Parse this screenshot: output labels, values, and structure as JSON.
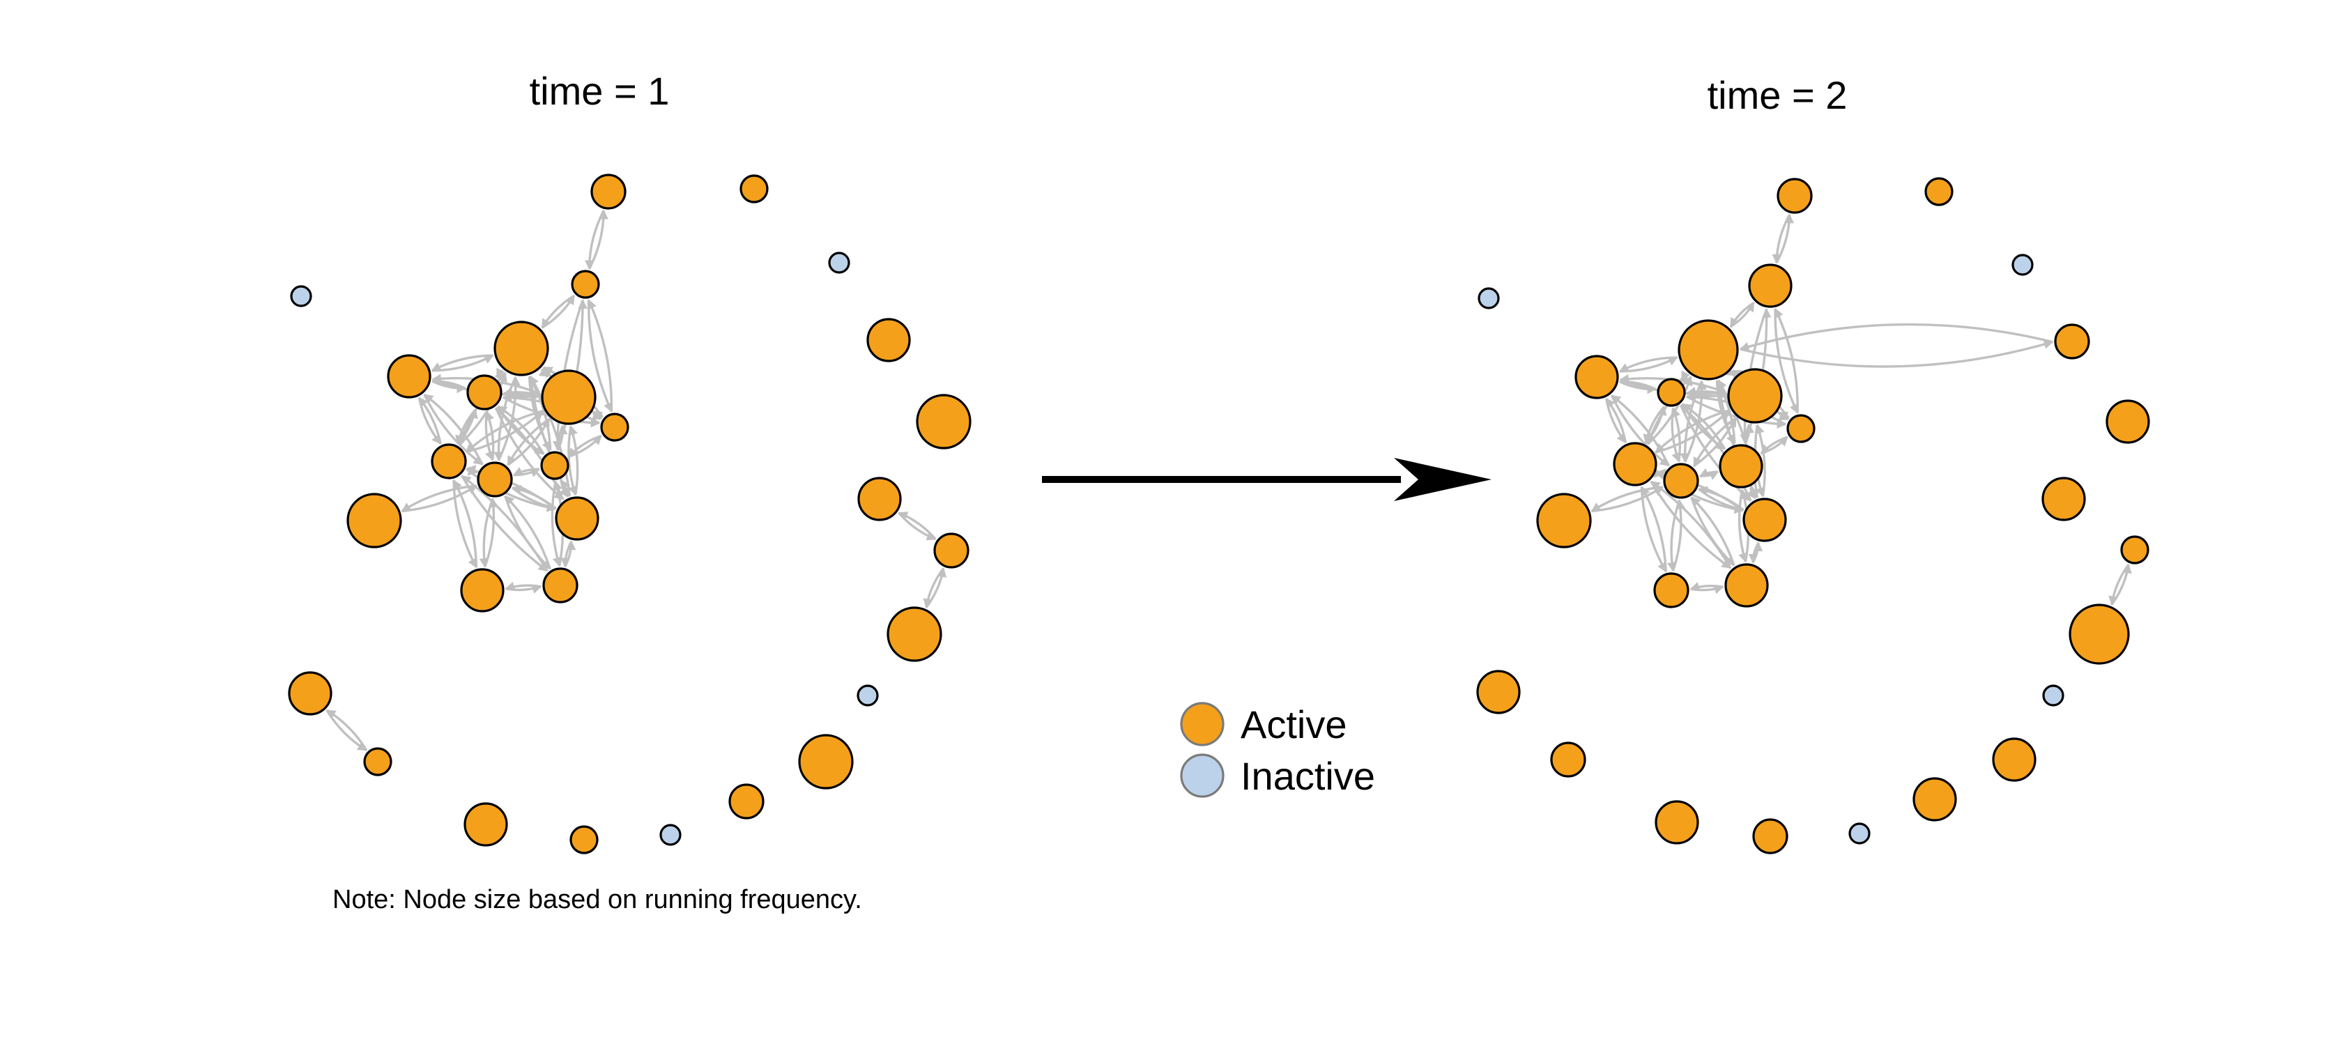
{
  "colors": {
    "active": "#F5A01A",
    "inactive": "#BCD2EA",
    "edge": "#C0C0C0",
    "arrow": "#000000"
  },
  "panels": [
    {
      "title": "time = 1",
      "nodes": [
        {
          "id": "a",
          "status": "active",
          "size": "medium"
        },
        {
          "id": "b",
          "status": "active",
          "size": "small"
        },
        {
          "id": "c",
          "status": "inactive",
          "size": "tiny"
        },
        {
          "id": "d",
          "status": "inactive",
          "size": "tiny"
        },
        {
          "id": "e",
          "status": "active",
          "size": "small"
        },
        {
          "id": "f",
          "status": "active",
          "size": "large"
        },
        {
          "id": "g",
          "status": "active",
          "size": "xlarge"
        },
        {
          "id": "h",
          "status": "active",
          "size": "large"
        },
        {
          "id": "i",
          "status": "active",
          "size": "medium"
        },
        {
          "id": "j",
          "status": "active",
          "size": "xlarge"
        },
        {
          "id": "k",
          "status": "active",
          "size": "xlarge"
        },
        {
          "id": "l",
          "status": "active",
          "size": "medium"
        },
        {
          "id": "m",
          "status": "active",
          "size": "medium"
        },
        {
          "id": "n",
          "status": "active",
          "size": "small"
        },
        {
          "id": "o",
          "status": "active",
          "size": "large"
        },
        {
          "id": "p",
          "status": "active",
          "size": "xlarge"
        },
        {
          "id": "q",
          "status": "active",
          "size": "large"
        },
        {
          "id": "r",
          "status": "active",
          "size": "small"
        },
        {
          "id": "s",
          "status": "active",
          "size": "large"
        },
        {
          "id": "t",
          "status": "active",
          "size": "medium"
        },
        {
          "id": "u",
          "status": "active",
          "size": "medium"
        },
        {
          "id": "v",
          "status": "active",
          "size": "large"
        },
        {
          "id": "w",
          "status": "active",
          "size": "xlarge"
        },
        {
          "id": "x",
          "status": "active",
          "size": "small"
        },
        {
          "id": "y",
          "status": "active",
          "size": "xlarge"
        },
        {
          "id": "z",
          "status": "active",
          "size": "small"
        },
        {
          "id": "aa",
          "status": "inactive",
          "size": "tiny"
        },
        {
          "id": "ab",
          "status": "active",
          "size": "medium"
        },
        {
          "id": "ac",
          "status": "active",
          "size": "large"
        },
        {
          "id": "ad",
          "status": "inactive",
          "size": "tiny"
        }
      ]
    },
    {
      "title": "time = 2",
      "nodes": [
        {
          "id": "a",
          "status": "active",
          "size": "medium"
        },
        {
          "id": "b",
          "status": "active",
          "size": "small"
        },
        {
          "id": "c",
          "status": "inactive",
          "size": "tiny"
        },
        {
          "id": "d",
          "status": "inactive",
          "size": "tiny"
        },
        {
          "id": "e",
          "status": "active",
          "size": "large"
        },
        {
          "id": "f",
          "status": "active",
          "size": "medium"
        },
        {
          "id": "g",
          "status": "active",
          "size": "xxlarge"
        },
        {
          "id": "h",
          "status": "active",
          "size": "large"
        },
        {
          "id": "i",
          "status": "active",
          "size": "small"
        },
        {
          "id": "j",
          "status": "active",
          "size": "xlarge"
        },
        {
          "id": "k",
          "status": "active",
          "size": "large"
        },
        {
          "id": "l",
          "status": "active",
          "size": "large"
        },
        {
          "id": "m",
          "status": "active",
          "size": "medium"
        },
        {
          "id": "n",
          "status": "active",
          "size": "large"
        },
        {
          "id": "o",
          "status": "active",
          "size": "large"
        },
        {
          "id": "p",
          "status": "active",
          "size": "xlarge"
        },
        {
          "id": "q",
          "status": "active",
          "size": "large"
        },
        {
          "id": "r",
          "status": "active",
          "size": "small"
        },
        {
          "id": "s",
          "status": "active",
          "size": "medium"
        },
        {
          "id": "t",
          "status": "active",
          "size": "large"
        },
        {
          "id": "u",
          "status": "active",
          "size": "small"
        },
        {
          "id": "v",
          "status": "active",
          "size": "large"
        },
        {
          "id": "w",
          "status": "active",
          "size": "xxlarge"
        },
        {
          "id": "x",
          "status": "active",
          "size": "medium"
        },
        {
          "id": "y",
          "status": "active",
          "size": "large"
        },
        {
          "id": "z",
          "status": "active",
          "size": "medium"
        },
        {
          "id": "aa",
          "status": "inactive",
          "size": "tiny"
        },
        {
          "id": "ab",
          "status": "active",
          "size": "large"
        },
        {
          "id": "ac",
          "status": "active",
          "size": "large"
        },
        {
          "id": "ad",
          "status": "inactive",
          "size": "tiny"
        }
      ]
    }
  ],
  "legend": {
    "items": [
      {
        "label": "Active",
        "status": "active"
      },
      {
        "label": "Inactive",
        "status": "inactive"
      }
    ]
  },
  "note": "Note: Node size based on running frequency."
}
